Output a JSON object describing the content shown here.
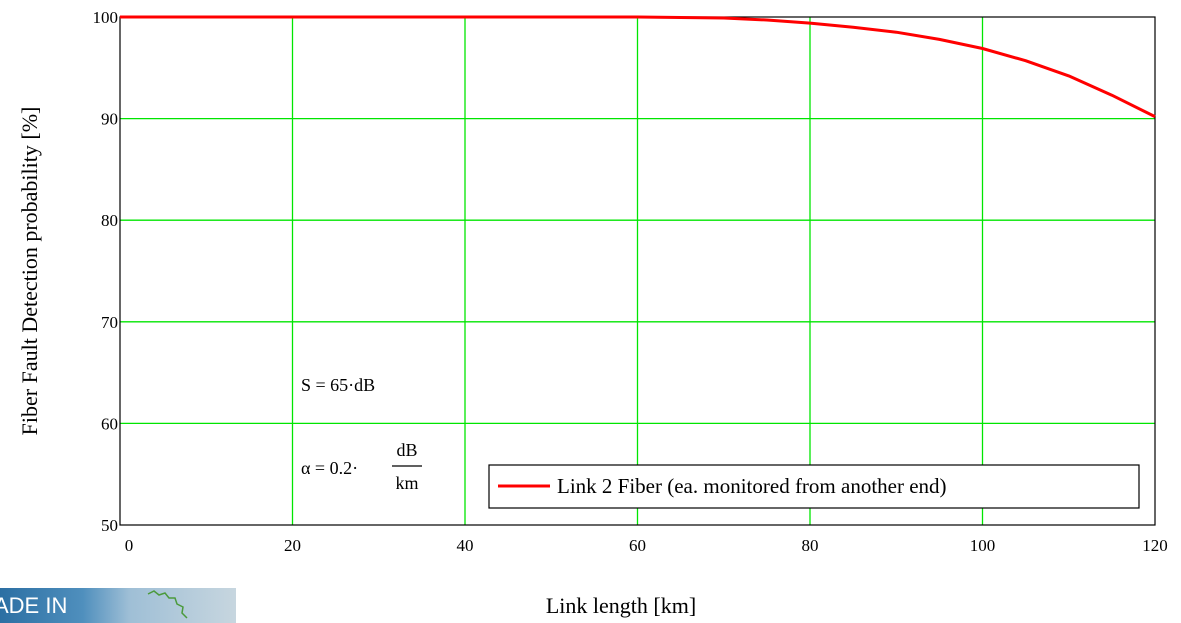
{
  "chart_data": {
    "type": "line",
    "xlabel": "Link length [km]",
    "ylabel": "Fiber Fault Detection probability [%]",
    "xlim": [
      0,
      120
    ],
    "ylim": [
      50,
      100
    ],
    "xticks": [
      "0",
      "20",
      "40",
      "60",
      "80",
      "100",
      "120"
    ],
    "yticks": [
      "50",
      "60",
      "70",
      "80",
      "90",
      "100"
    ],
    "grid": true,
    "series": [
      {
        "name": "Link 2 Fiber (ea. monitored from another end)",
        "color": "#ff0000",
        "x": [
          0,
          10,
          20,
          30,
          40,
          50,
          60,
          65,
          70,
          75,
          80,
          85,
          90,
          95,
          100,
          105,
          110,
          115,
          120
        ],
        "y": [
          100,
          100,
          100,
          100,
          100,
          100,
          100,
          99.95,
          99.9,
          99.7,
          99.4,
          99.0,
          98.5,
          97.8,
          96.9,
          95.7,
          94.2,
          92.3,
          90.2
        ]
      }
    ],
    "legend_position": "bottom-right",
    "annotations": [
      {
        "text": "S = 65·dB"
      },
      {
        "prefix": "α = 0.2·",
        "num": "dB",
        "den": "km"
      }
    ]
  },
  "badge": {
    "text": "ADE IN"
  },
  "colors": {
    "grid": "#00e600",
    "axis": "#000000",
    "line": "#ff0000"
  }
}
